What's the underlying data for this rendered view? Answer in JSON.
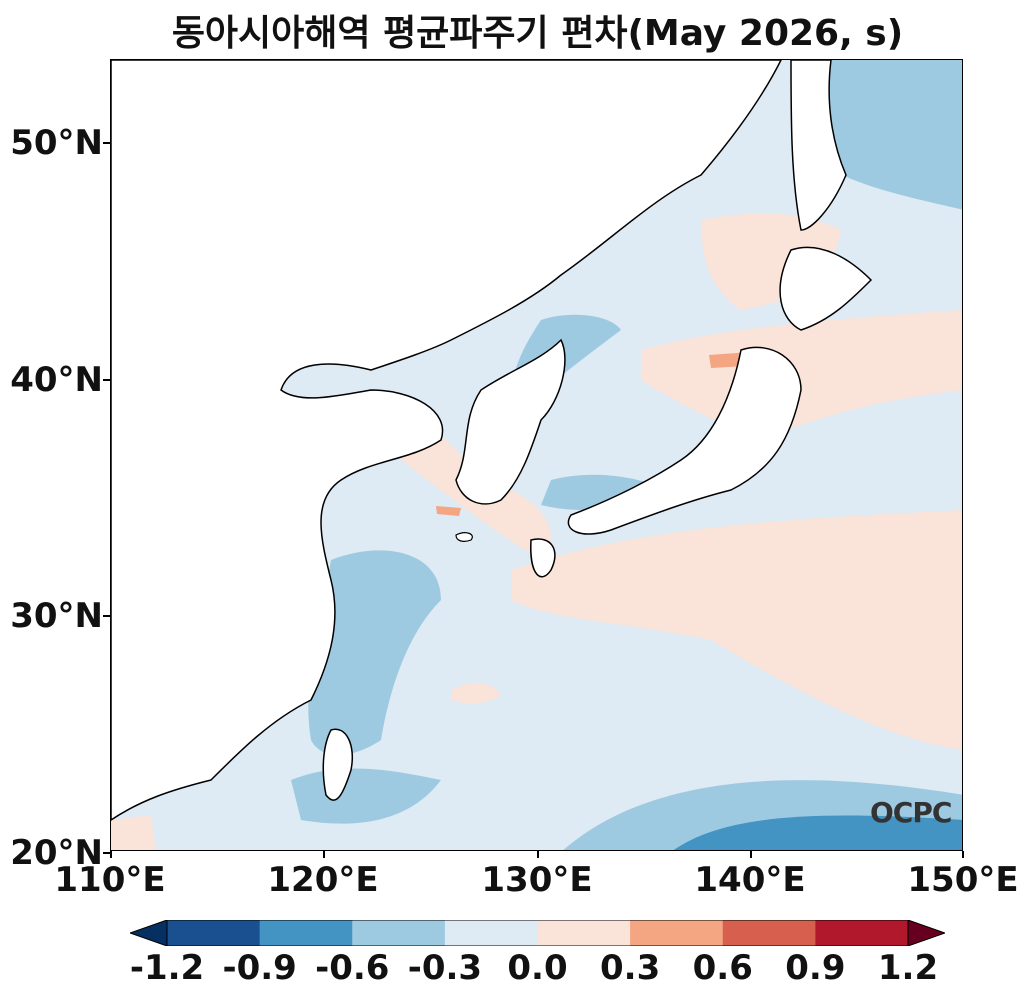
{
  "title": "동아시아해역 평균파주기 편차(May 2026, s)",
  "logo_text": "OCPC",
  "map": {
    "lon_range": [
      110,
      150
    ],
    "lat_range": [
      20,
      53.5
    ],
    "lat_ticks": [
      "20°N",
      "30°N",
      "40°N",
      "50°N"
    ],
    "lon_ticks": [
      "110°E",
      "120°E",
      "130°E",
      "140°E",
      "150°E"
    ],
    "variable": "mean wave period anomaly",
    "units": "s",
    "dominant_field_level": "0.0 to -0.3"
  },
  "colorbar": {
    "extend": "both",
    "levels": [
      "-1.2",
      "-0.9",
      "-0.6",
      "-0.3",
      "0.0",
      "0.3",
      "0.6",
      "0.9",
      "1.2"
    ],
    "colors": [
      "#053061",
      "#1a508f",
      "#4393c3",
      "#9ecae1",
      "#deeaf4",
      "#fae3d8",
      "#f4a582",
      "#d6604d",
      "#b2182b",
      "#67001f"
    ]
  }
}
